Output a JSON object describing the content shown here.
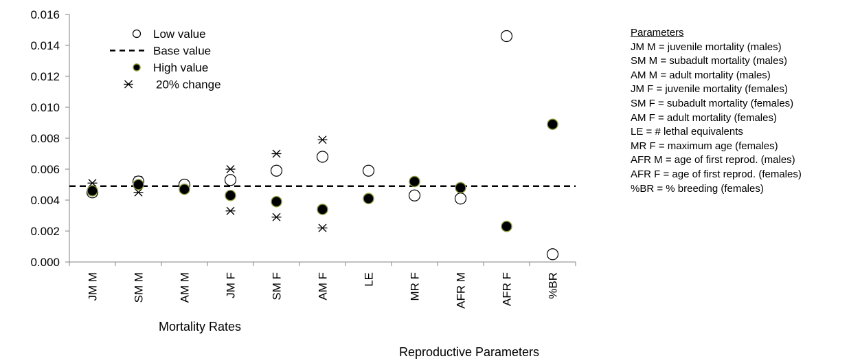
{
  "chart_data": {
    "type": "scatter",
    "categories": [
      "JM M",
      "SM M",
      "AM M",
      "JM F",
      "SM F",
      "AM F",
      "LE",
      "MR F",
      "AFR M",
      "AFR F",
      "%BR"
    ],
    "y_ticks": [
      "0.000",
      "0.002",
      "0.004",
      "0.006",
      "0.008",
      "0.010",
      "0.012",
      "0.014",
      "0.016"
    ],
    "ylim": [
      0,
      0.016
    ],
    "base_value": 0.0049,
    "series": [
      {
        "name": "Low value",
        "values": [
          0.0045,
          0.0052,
          0.005,
          0.0053,
          0.0059,
          0.0068,
          0.0059,
          0.0043,
          0.0041,
          0.0146,
          0.0005
        ]
      },
      {
        "name": "High value",
        "values": [
          0.0046,
          0.005,
          0.0047,
          0.0043,
          0.0039,
          0.0034,
          0.0041,
          0.0052,
          0.0048,
          0.0023,
          0.0089
        ]
      },
      {
        "name": "20% change",
        "pairs": [
          [
            0.0051,
            0.0046
          ],
          [
            0.0053,
            0.0045
          ],
          [
            0.0049,
            0.0048
          ],
          [
            0.006,
            0.0033
          ],
          [
            0.007,
            0.0029
          ],
          [
            0.0079,
            0.0022
          ]
        ]
      }
    ],
    "legend": [
      {
        "label": "Low value",
        "marker": "open-circle"
      },
      {
        "label": "Base value",
        "marker": "dashed-line"
      },
      {
        "label": "High value",
        "marker": "filled-circle"
      },
      {
        "label": "20% change",
        "marker": "asterisk"
      }
    ],
    "legend_position": "top-left",
    "group_labels": [
      "Mortality Rates",
      "Reproductive Parameters"
    ],
    "grid": false
  },
  "parameters": {
    "title": "Parameters",
    "lines": [
      "JM M = juvenile mortality (males)",
      "SM M = subadult mortality (males)",
      "AM M = adult mortality (males)",
      "JM F = juvenile mortality (females)",
      "SM F = subadult mortality (females)",
      "AM F = adult mortality (females)",
      "LE = # lethal equivalents",
      "MR F = maximum age (females)",
      "AFR M = age of first reprod. (males)",
      "AFR F = age of first reprod. (females)",
      "%BR = % breeding (females)"
    ]
  },
  "colors": {
    "high_fill": "#000000",
    "high_edge": "#8a9a3a",
    "axis": "#808080"
  }
}
